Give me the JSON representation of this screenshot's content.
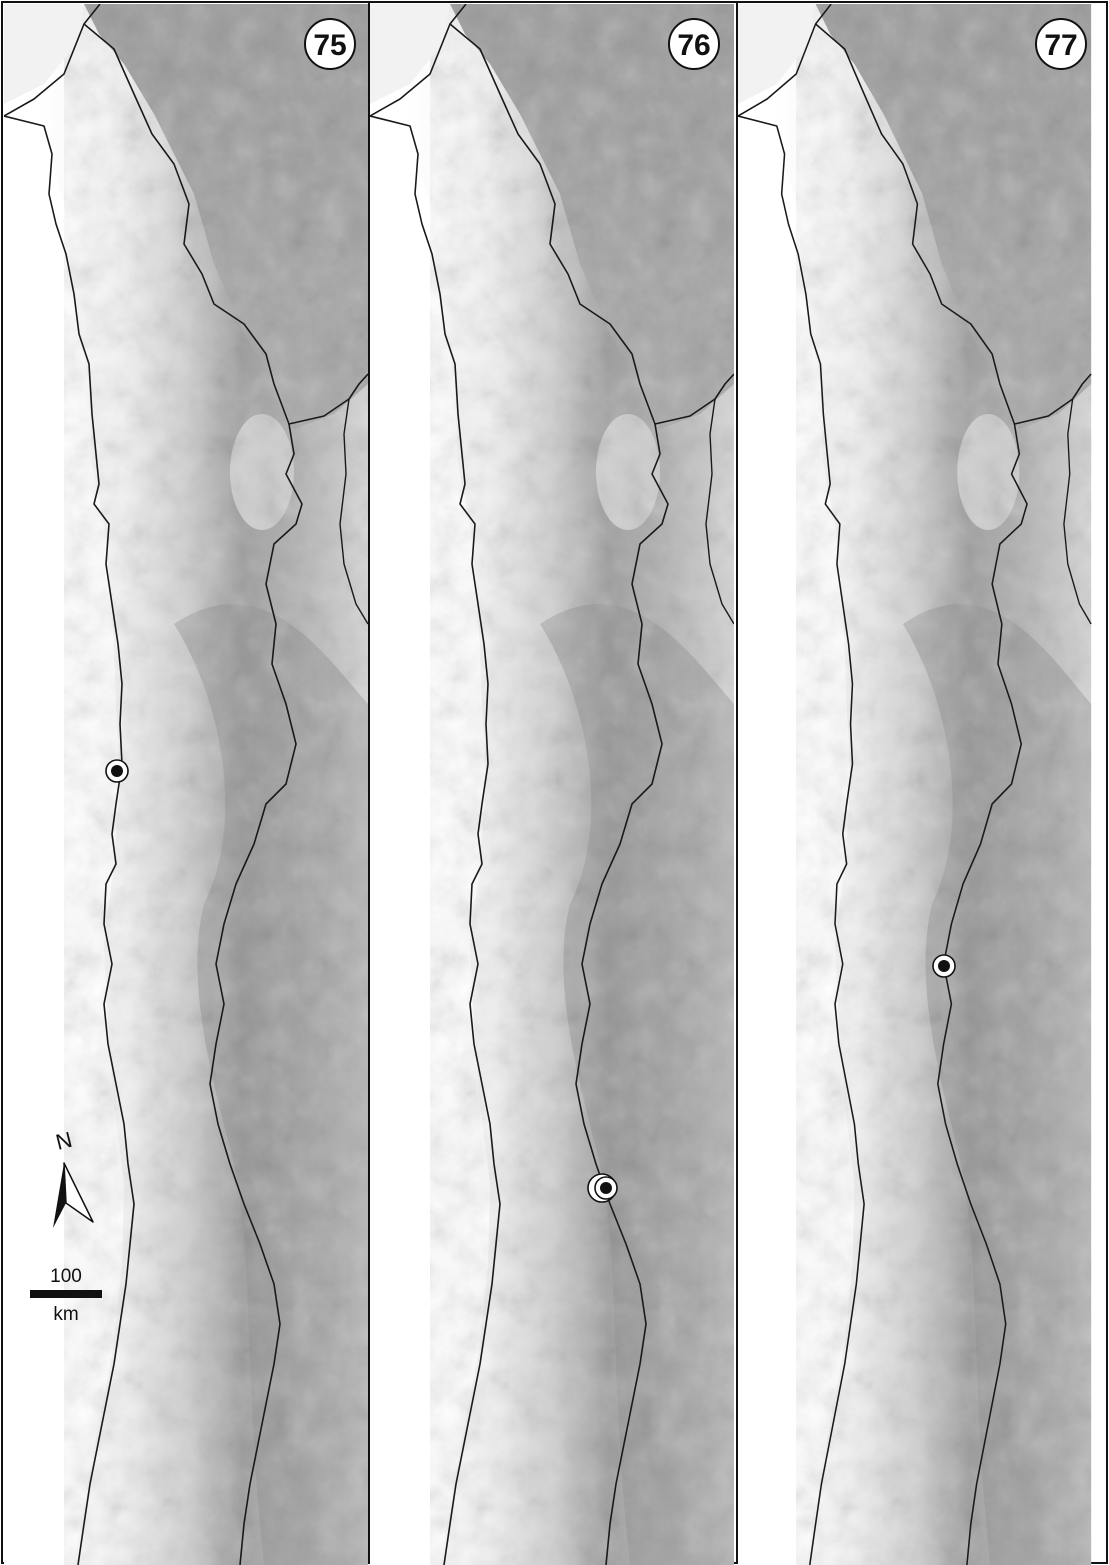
{
  "figure": {
    "panels": [
      {
        "label": "75",
        "records": [
          {
            "type": "single"
          }
        ]
      },
      {
        "label": "76",
        "records": [
          {
            "type": "double"
          }
        ]
      },
      {
        "label": "77",
        "records": [
          {
            "type": "single"
          }
        ]
      }
    ],
    "north_arrow": {
      "letter": "N",
      "icon": "north-arrow-icon"
    },
    "scale_bar": {
      "value": "100",
      "unit": "km"
    },
    "colors": {
      "frame": "#111111",
      "border_line": "#1a1a1a",
      "relief_dark": "#6f6f6f",
      "relief_mid": "#a9a9a9",
      "relief_light": "#e6e6e6",
      "sea": "#ffffff",
      "marker_fill": "#111111"
    }
  }
}
